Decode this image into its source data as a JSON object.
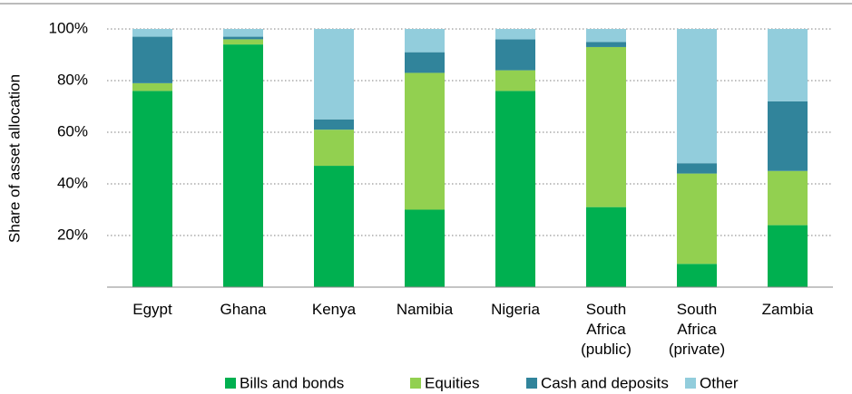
{
  "chart_data": {
    "type": "stacked_bar",
    "y_label": "Share of asset allocation",
    "categories": [
      "Egypt",
      "Ghana",
      "Kenya",
      "Namibia",
      "Nigeria",
      "South Africa (public)",
      "South Africa (private)",
      "Zambia"
    ],
    "series": [
      {
        "name": "Bills and bonds",
        "color": "#00b050",
        "values": [
          76,
          94,
          47,
          30,
          76,
          31,
          9,
          24
        ]
      },
      {
        "name": "Equities",
        "color": "#92d050",
        "values": [
          3,
          2,
          14,
          53,
          8,
          62,
          35,
          21
        ]
      },
      {
        "name": "Cash and deposits",
        "color": "#31849b",
        "values": [
          18,
          1,
          4,
          8,
          12,
          2,
          4,
          27
        ]
      },
      {
        "name": "Other",
        "color": "#92cddc",
        "values": [
          3,
          3,
          35,
          9,
          4,
          5,
          52,
          28
        ]
      }
    ],
    "ylim": [
      0,
      100
    ],
    "yticks": [
      {
        "value": 20,
        "label": "20%"
      },
      {
        "value": 40,
        "label": "40%"
      },
      {
        "value": 60,
        "label": "60%"
      },
      {
        "value": 80,
        "label": "80%"
      },
      {
        "value": 100,
        "label": "100%"
      }
    ],
    "grid": true
  }
}
